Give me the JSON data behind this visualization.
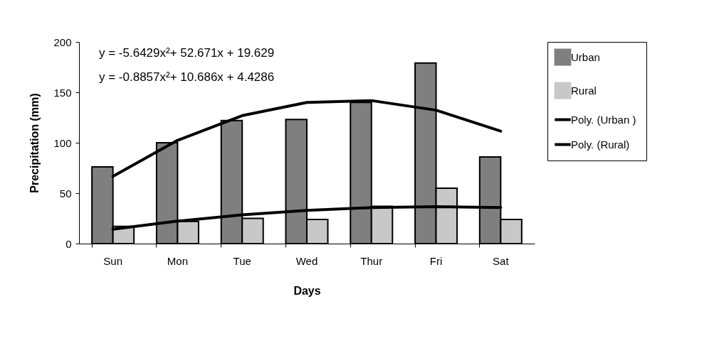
{
  "chart_data": {
    "type": "bar",
    "xlabel": "Days",
    "ylabel": "Precipitation (mm)",
    "categories": [
      "Sun",
      "Mon",
      "Tue",
      "Wed",
      "Thur",
      "Fri",
      "Sat"
    ],
    "series": [
      {
        "name": "Urban",
        "color": "#7f7f7f",
        "values": [
          76,
          100,
          122,
          123,
          140,
          179,
          86
        ]
      },
      {
        "name": "Rural",
        "color": "#c8c8c8",
        "values": [
          17,
          22,
          25,
          24,
          37,
          55,
          24
        ]
      },
      {
        "name": "Poly. (Urban )",
        "type": "line",
        "color": "#000000",
        "values": [
          66.7,
          102.4,
          126.9,
          140.0,
          141.8,
          132.3,
          111.5
        ]
      },
      {
        "name": "Poly. (Rural)",
        "type": "line",
        "color": "#000000",
        "values": [
          14.2,
          22.3,
          28.5,
          33.0,
          35.7,
          36.7,
          35.8
        ]
      }
    ],
    "ylim": [
      0,
      200
    ],
    "yticks": [
      0,
      50,
      100,
      150,
      200
    ],
    "grid": false,
    "legend": "right",
    "annotations": [
      "y = -5.6429x²+ 52.671x + 19.629",
      "y = -0.8857x²+ 10.686x + 4.4286"
    ]
  }
}
